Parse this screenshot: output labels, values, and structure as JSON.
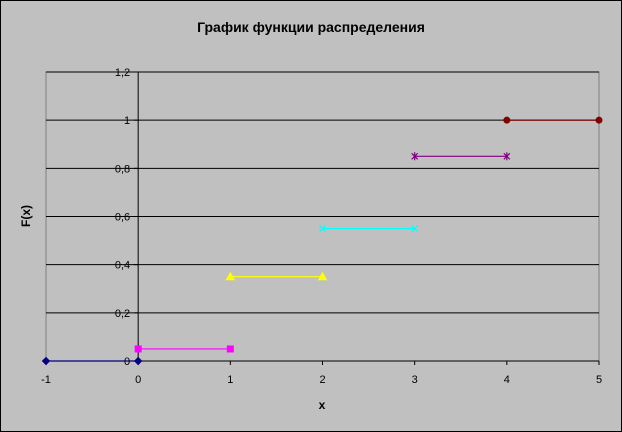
{
  "chart_data": {
    "type": "line",
    "title": "График функции распределения",
    "xlabel": "x",
    "ylabel": "F(x)",
    "xlim": [
      -1,
      5
    ],
    "ylim": [
      0,
      1.2
    ],
    "x_ticks": [
      -1,
      0,
      1,
      2,
      3,
      4,
      5
    ],
    "x_tick_labels": [
      "-1",
      "0",
      "1",
      "2",
      "3",
      "4",
      "5"
    ],
    "y_ticks": [
      0,
      0.2,
      0.4,
      0.6,
      0.8,
      1,
      1.2
    ],
    "y_tick_labels": [
      "0",
      "0,2",
      "0,4",
      "0,6",
      "0,8",
      "1",
      "1,2"
    ],
    "grid": "horizontal",
    "legend": "none",
    "series": [
      {
        "x": [
          -1,
          0
        ],
        "y": [
          0,
          0
        ],
        "color": "#000080",
        "marker": "diamond"
      },
      {
        "x": [
          0,
          1
        ],
        "y": [
          0.05,
          0.05
        ],
        "color": "#ff00ff",
        "marker": "square"
      },
      {
        "x": [
          1,
          2
        ],
        "y": [
          0.35,
          0.35
        ],
        "color": "#ffff00",
        "marker": "triangle"
      },
      {
        "x": [
          2,
          3
        ],
        "y": [
          0.55,
          0.55
        ],
        "color": "#00ffff",
        "marker": "x"
      },
      {
        "x": [
          3,
          4
        ],
        "y": [
          0.85,
          0.85
        ],
        "color": "#800080",
        "marker": "star"
      },
      {
        "x": [
          4,
          5
        ],
        "y": [
          1,
          1
        ],
        "color": "#800000",
        "marker": "circle"
      }
    ]
  },
  "colors": {
    "chart_background": "#ffffff",
    "plot_background": "#c0c0c0",
    "gridline": "#000000",
    "axis": "#000000"
  }
}
